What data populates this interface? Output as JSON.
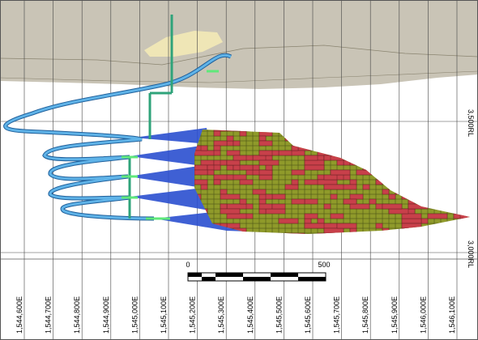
{
  "eastings": [
    "1,544,600E",
    "1,544,700E",
    "1,544,800E",
    "1,544,900E",
    "1,545,000E",
    "1,545,100E",
    "1,545,200E",
    "1,545,300E",
    "1,545,400E",
    "1,545,500E",
    "1,545,600E",
    "1,545,700E",
    "1,545,800E",
    "1,545,900E",
    "1,546,000E",
    "1,546,100E"
  ],
  "rl_labels": [
    "3,500RL",
    "3,000RL"
  ],
  "scale_bar": {
    "start": "0",
    "end": "500"
  }
}
